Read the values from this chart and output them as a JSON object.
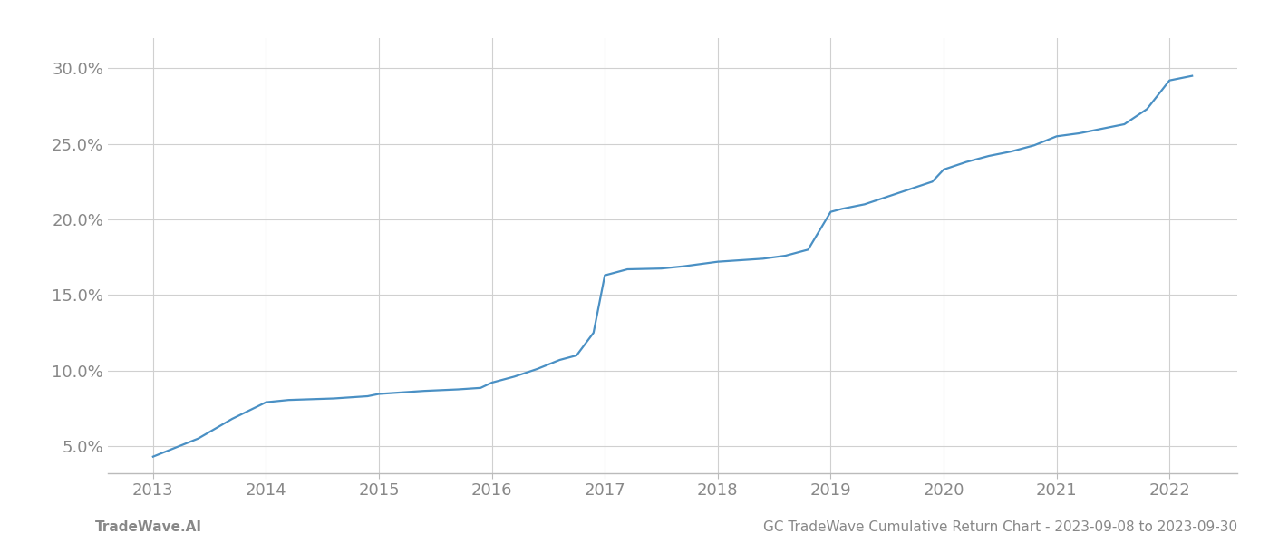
{
  "x_years": [
    2013.0,
    2013.4,
    2013.7,
    2014.0,
    2014.2,
    2014.4,
    2014.6,
    2014.9,
    2015.0,
    2015.2,
    2015.4,
    2015.7,
    2015.9,
    2016.0,
    2016.2,
    2016.4,
    2016.6,
    2016.75,
    2016.9,
    2017.0,
    2017.1,
    2017.2,
    2017.5,
    2017.7,
    2017.9,
    2018.0,
    2018.1,
    2018.2,
    2018.4,
    2018.6,
    2018.8,
    2019.0,
    2019.1,
    2019.3,
    2019.5,
    2019.7,
    2019.9,
    2020.0,
    2020.2,
    2020.4,
    2020.6,
    2020.8,
    2021.0,
    2021.2,
    2021.4,
    2021.6,
    2021.8,
    2022.0,
    2022.2
  ],
  "y_values": [
    4.3,
    5.5,
    6.8,
    7.9,
    8.05,
    8.1,
    8.15,
    8.3,
    8.45,
    8.55,
    8.65,
    8.75,
    8.85,
    9.2,
    9.6,
    10.1,
    10.7,
    11.0,
    12.5,
    16.3,
    16.5,
    16.7,
    16.75,
    16.9,
    17.1,
    17.2,
    17.25,
    17.3,
    17.4,
    17.6,
    18.0,
    20.5,
    20.7,
    21.0,
    21.5,
    22.0,
    22.5,
    23.3,
    23.8,
    24.2,
    24.5,
    24.9,
    25.5,
    25.7,
    26.0,
    26.3,
    27.3,
    29.2,
    29.5
  ],
  "line_color": "#4a90c4",
  "line_width": 1.6,
  "bg_color": "#ffffff",
  "plot_bg_color": "#ffffff",
  "grid_color": "#d0d0d0",
  "tick_label_color": "#888888",
  "yticks": [
    5.0,
    10.0,
    15.0,
    20.0,
    25.0,
    30.0
  ],
  "xticks": [
    2013,
    2014,
    2015,
    2016,
    2017,
    2018,
    2019,
    2020,
    2021,
    2022
  ],
  "xlim": [
    2012.6,
    2022.6
  ],
  "ylim": [
    3.2,
    32.0
  ],
  "footer_left": "TradeWave.AI",
  "footer_right": "GC TradeWave Cumulative Return Chart - 2023-09-08 to 2023-09-30",
  "footer_color": "#888888",
  "footer_fontsize": 11,
  "tick_fontsize": 13
}
